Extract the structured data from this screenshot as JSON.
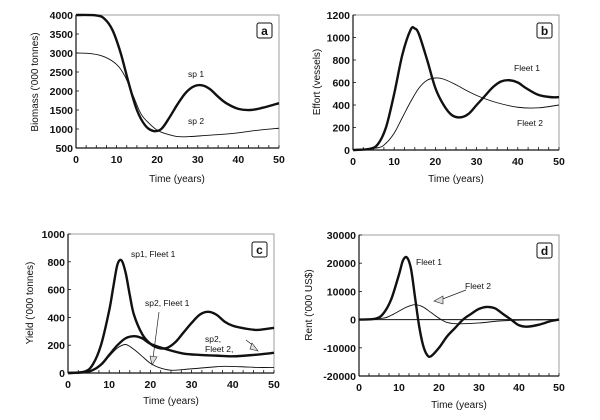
{
  "chart_data": [
    {
      "type": "line",
      "panel_label": "a",
      "xlabel": "Time (years)",
      "ylabel": "Biomass ('000 tonnes)",
      "xlim": [
        0,
        50
      ],
      "ylim": [
        500,
        4000
      ],
      "xticks": [
        0,
        10,
        20,
        30,
        40,
        50
      ],
      "yticks": [
        500,
        1000,
        1500,
        2000,
        2500,
        3000,
        3500,
        4000
      ],
      "grid": false,
      "series": [
        {
          "name": "sp 1",
          "style": "thick",
          "x": [
            0,
            5,
            7,
            9,
            11,
            13,
            15,
            17,
            19,
            21,
            23,
            25,
            27,
            29,
            31,
            33,
            35,
            37,
            40,
            43,
            46,
            50
          ],
          "y": [
            4000,
            3990,
            3900,
            3600,
            3000,
            2200,
            1500,
            1100,
            950,
            1000,
            1300,
            1650,
            1950,
            2120,
            2150,
            2050,
            1850,
            1680,
            1530,
            1500,
            1560,
            1680
          ]
        },
        {
          "name": "sp 2",
          "style": "thin",
          "x": [
            0,
            4,
            7,
            10,
            12,
            14,
            16,
            18,
            20,
            22,
            25,
            28,
            32,
            36,
            40,
            45,
            50
          ],
          "y": [
            3000,
            2980,
            2900,
            2700,
            2400,
            1900,
            1400,
            1150,
            970,
            880,
            800,
            800,
            830,
            860,
            900,
            970,
            1020
          ]
        }
      ],
      "annotations": [
        {
          "text": "sp 1",
          "x": 31,
          "y": 2450
        },
        {
          "text": "sp 2",
          "x": 31,
          "y": 1200
        }
      ]
    },
    {
      "type": "line",
      "panel_label": "b",
      "xlabel": "Time (years)",
      "ylabel": "Effort (vessels)",
      "xlim": [
        0,
        50
      ],
      "ylim": [
        0,
        1200
      ],
      "xticks": [
        0,
        10,
        20,
        30,
        40,
        50
      ],
      "yticks": [
        0,
        200,
        400,
        600,
        800,
        1000,
        1200
      ],
      "grid": false,
      "series": [
        {
          "name": "Fleet 1",
          "style": "thick",
          "x": [
            0,
            4,
            6,
            8,
            10,
            12,
            14,
            15,
            16,
            18,
            20,
            22,
            24,
            26,
            28,
            30,
            32,
            34,
            36,
            38,
            40,
            42,
            45,
            48,
            50
          ],
          "y": [
            0,
            10,
            50,
            200,
            500,
            850,
            1070,
            1080,
            1030,
            800,
            550,
            400,
            310,
            290,
            320,
            400,
            480,
            560,
            610,
            620,
            600,
            550,
            490,
            470,
            470
          ]
        },
        {
          "name": "Fleet 2",
          "style": "thin",
          "x": [
            0,
            6,
            8,
            10,
            12,
            14,
            16,
            18,
            20,
            22,
            25,
            28,
            31,
            35,
            40,
            45,
            50
          ],
          "y": [
            0,
            20,
            60,
            150,
            290,
            430,
            550,
            620,
            640,
            630,
            580,
            520,
            470,
            420,
            380,
            375,
            400
          ]
        }
      ],
      "annotations": [
        {
          "text": "Fleet 1",
          "x": 44,
          "y": 720
        },
        {
          "text": "Fleet 2",
          "x": 44,
          "y": 240
        }
      ]
    },
    {
      "type": "line",
      "panel_label": "c",
      "xlabel": "Time (years)",
      "ylabel": "Yield ('000 tonnes)",
      "xlim": [
        0,
        50
      ],
      "ylim": [
        0,
        1000
      ],
      "xticks": [
        0,
        10,
        20,
        30,
        40,
        50
      ],
      "yticks": [
        0,
        200,
        400,
        600,
        800,
        1000
      ],
      "grid": false,
      "series": [
        {
          "name": "sp1, Fleet 1",
          "style": "thick",
          "x": [
            0,
            4,
            6,
            8,
            10,
            11,
            12,
            13,
            14,
            15,
            16,
            18,
            20,
            22,
            24,
            26,
            28,
            30,
            32,
            34,
            36,
            38,
            40,
            43,
            46,
            50
          ],
          "y": [
            0,
            10,
            60,
            200,
            450,
            620,
            780,
            810,
            720,
            560,
            420,
            280,
            210,
            180,
            180,
            220,
            290,
            360,
            420,
            440,
            420,
            370,
            340,
            320,
            310,
            325
          ]
        },
        {
          "name": "sp2, Fleet 1",
          "style": "thick",
          "x": [
            0,
            5,
            8,
            10,
            12,
            14,
            16,
            18,
            20,
            24,
            28,
            32,
            36,
            40,
            45,
            50
          ],
          "y": [
            0,
            10,
            60,
            130,
            200,
            250,
            265,
            250,
            210,
            170,
            140,
            130,
            125,
            120,
            130,
            145
          ]
        },
        {
          "name": "sp2, Fleet 2,",
          "style": "thin",
          "x": [
            0,
            6,
            8,
            10,
            12,
            14,
            16,
            18,
            20,
            22,
            25,
            28,
            32,
            36,
            38,
            42,
            46,
            50
          ],
          "y": [
            0,
            20,
            60,
            120,
            180,
            205,
            170,
            120,
            70,
            40,
            20,
            25,
            35,
            45,
            48,
            45,
            40,
            40
          ]
        }
      ],
      "annotations": [
        {
          "text": "sp1, Fleet 1"
        },
        {
          "text": "sp2, Fleet 1"
        },
        {
          "text": "sp2,"
        },
        {
          "text": "Fleet 2,"
        }
      ]
    },
    {
      "type": "line",
      "panel_label": "d",
      "xlabel": "Time (years)",
      "ylabel": "Rent ('000 US$)",
      "xlim": [
        0,
        50
      ],
      "ylim": [
        -20000,
        30000
      ],
      "xticks": [
        0,
        10,
        20,
        30,
        40,
        50
      ],
      "yticks": [
        -20000,
        -10000,
        0,
        10000,
        20000,
        30000
      ],
      "grid": false,
      "series": [
        {
          "name": "Fleet 1",
          "style": "thick",
          "x": [
            0,
            4,
            6,
            8,
            10,
            11,
            12,
            13,
            14,
            15,
            16,
            17,
            18,
            20,
            22,
            24,
            26,
            28,
            30,
            32,
            34,
            36,
            38,
            40,
            42,
            45,
            48,
            50
          ],
          "y": [
            0,
            300,
            2000,
            7000,
            16000,
            21000,
            22000,
            18000,
            8000,
            -2000,
            -9000,
            -12500,
            -13000,
            -10000,
            -6000,
            -3000,
            0,
            2000,
            3800,
            4500,
            4000,
            2000,
            0,
            -2000,
            -2500,
            -1800,
            -500,
            0
          ]
        },
        {
          "name": "Fleet 2",
          "style": "thin",
          "x": [
            0,
            6,
            8,
            10,
            12,
            14,
            16,
            18,
            20,
            22,
            25,
            30,
            35,
            40,
            45,
            50
          ],
          "y": [
            0,
            500,
            1500,
            3000,
            4500,
            5300,
            4500,
            2500,
            500,
            -1000,
            -1500,
            -1200,
            -500,
            -200,
            -100,
            0
          ]
        }
      ],
      "annotations": [
        {
          "text": "Fleet 1"
        },
        {
          "text": "Fleet 2"
        }
      ]
    }
  ]
}
